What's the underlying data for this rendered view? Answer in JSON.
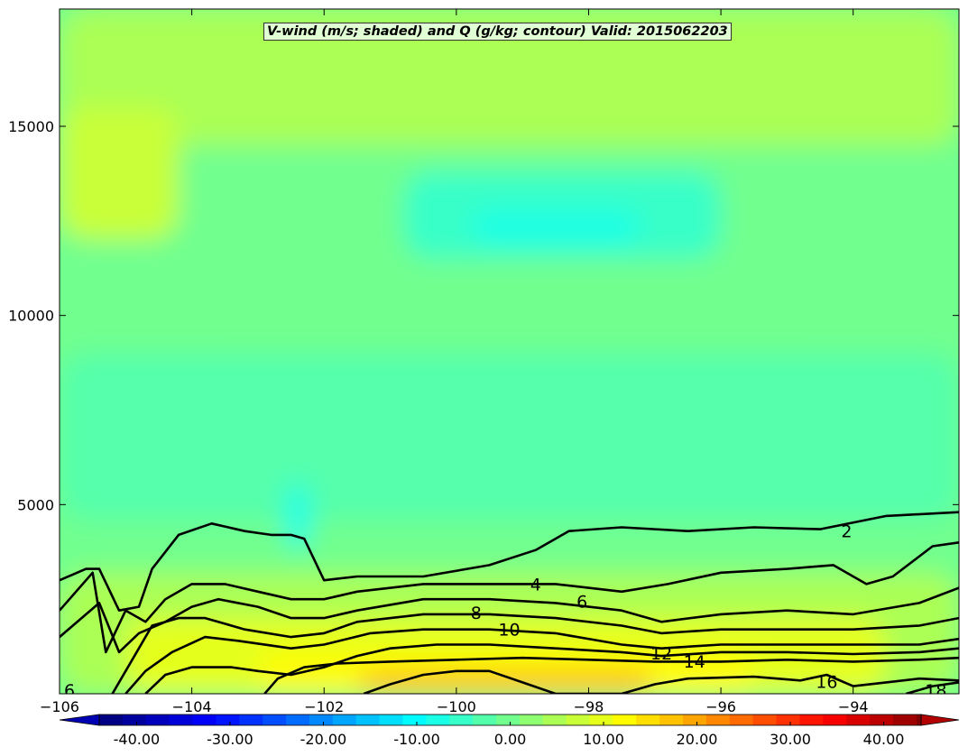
{
  "chart_data": {
    "type": "contour",
    "title": "V-wind (m/s; shaded) and Q (g/kg; contour) Valid: 2015062203",
    "x_ticks": [
      "−106",
      "−104",
      "−102",
      "−100",
      "−98",
      "−96",
      "−94"
    ],
    "x_tick_values": [
      -106,
      -104,
      -102,
      -100,
      -98,
      -96,
      -94
    ],
    "xlim": [
      -106,
      -92.4
    ],
    "y_ticks": [
      "5000",
      "10000",
      "15000"
    ],
    "y_tick_values": [
      5000,
      10000,
      15000
    ],
    "ylim": [
      0,
      18100
    ],
    "colorbar": {
      "ticks": [
        "-40.00",
        "-30.00",
        "-20.00",
        "-10.00",
        "0.00",
        "10.00",
        "20.00",
        "30.00",
        "40.00"
      ],
      "tick_values": [
        -40,
        -30,
        -20,
        -10,
        0,
        10,
        20,
        30,
        40
      ],
      "range": [
        -44,
        44
      ],
      "step": 2.5,
      "extend": "both",
      "colormap": "jet"
    },
    "shaded_field": {
      "name": "V-wind",
      "units": "m/s",
      "regions": [
        {
          "x": [
            -106,
            -92.4
          ],
          "y": [
            0,
            18100
          ],
          "value": -1
        },
        {
          "x": [
            -106,
            -92.4
          ],
          "y": [
            14500,
            18100
          ],
          "value": 4
        },
        {
          "x": [
            -106,
            -104.2
          ],
          "y": [
            12000,
            15500
          ],
          "value": 6
        },
        {
          "x": [
            -100.8,
            -96
          ],
          "y": [
            11500,
            13800
          ],
          "value": -6
        },
        {
          "x": [
            -99.8,
            -97.2
          ],
          "y": [
            11900,
            12800
          ],
          "value": -10
        },
        {
          "x": [
            -106,
            -92.4
          ],
          "y": [
            4600,
            9000
          ],
          "value": -5
        },
        {
          "x": [
            -102.6,
            -102.2
          ],
          "y": [
            3800,
            5600
          ],
          "value": -9
        },
        {
          "x": [
            -106,
            -92.4
          ],
          "y": [
            0,
            3200
          ],
          "value": 3
        },
        {
          "x": [
            -105,
            -93.5
          ],
          "y": [
            0,
            2000
          ],
          "value": 8
        },
        {
          "x": [
            -103,
            -95.5
          ],
          "y": [
            0,
            1100
          ],
          "value": 12
        },
        {
          "x": [
            -101.5,
            -97
          ],
          "y": [
            0,
            650
          ],
          "value": 16
        }
      ]
    },
    "contour_field": {
      "name": "Q",
      "units": "g/kg",
      "levels": [
        2,
        4,
        6,
        8,
        10,
        12,
        14,
        16,
        18
      ],
      "lines": [
        {
          "level": 2,
          "label": "2",
          "label_at": [
            -94.1,
            4300
          ],
          "x": [
            -106,
            -105.6,
            -105.4,
            -105.1,
            -104.8,
            -104.6,
            -104.2,
            -103.7,
            -103.2,
            -102.8,
            -102.5,
            -102.3,
            -102.0,
            -101.5,
            -100.5,
            -99.5,
            -98.8,
            -98.3,
            -97.5,
            -96.5,
            -95.5,
            -94.5,
            -93.5,
            -92.4
          ],
          "y": [
            3000,
            3300,
            3300,
            2200,
            2300,
            3300,
            4200,
            4500,
            4300,
            4200,
            4200,
            4100,
            3000,
            3100,
            3100,
            3400,
            3800,
            4300,
            4400,
            4300,
            4400,
            4350,
            4700,
            4800
          ]
        },
        {
          "level": 4,
          "label": "4",
          "label_at": [
            -98.8,
            2900
          ],
          "x": [
            -106,
            -105.5,
            -105.3,
            -105.0,
            -104.7,
            -104.4,
            -104.0,
            -103.5,
            -103.0,
            -102.5,
            -102.0,
            -101.5,
            -100.5,
            -99.5,
            -98.5,
            -97.5,
            -96.8,
            -96.0,
            -95.0,
            -94.3,
            -93.8,
            -93.4,
            -92.8,
            -92.4
          ],
          "y": [
            2200,
            3200,
            1100,
            2200,
            1900,
            2500,
            2900,
            2900,
            2700,
            2500,
            2500,
            2700,
            2900,
            2900,
            2900,
            2700,
            2900,
            3200,
            3300,
            3400,
            2900,
            3100,
            3900,
            4000
          ]
        },
        {
          "level": 6,
          "label": "6",
          "label_at": [
            -98.1,
            2450
          ],
          "x": [
            -106,
            -105.4,
            -105.1,
            -104.8,
            -104.4,
            -104.0,
            -103.6,
            -103.0,
            -102.5,
            -102.0,
            -101.5,
            -100.5,
            -99.5,
            -98.5,
            -97.5,
            -96.9,
            -96.0,
            -95.0,
            -94.0,
            -93.0,
            -92.4
          ],
          "y": [
            1500,
            2400,
            1100,
            1600,
            1900,
            2300,
            2500,
            2300,
            2000,
            2000,
            2200,
            2500,
            2500,
            2400,
            2200,
            1900,
            2100,
            2200,
            2100,
            2400,
            2800
          ]
        },
        {
          "level": 8,
          "label": "8",
          "label_at": [
            -99.7,
            2150
          ],
          "x": [
            -105.2,
            -104.9,
            -104.6,
            -104.2,
            -103.8,
            -103.2,
            -102.5,
            -102.0,
            -101.5,
            -100.5,
            -99.5,
            -98.5,
            -97.5,
            -96.9,
            -96.0,
            -95.0,
            -94.0,
            -93.0,
            -92.4
          ],
          "y": [
            0,
            900,
            1800,
            2000,
            2000,
            1700,
            1500,
            1600,
            1900,
            2100,
            2100,
            2000,
            1800,
            1600,
            1700,
            1700,
            1700,
            1800,
            2000
          ]
        },
        {
          "level": 10,
          "label": "10",
          "label_at": [
            -99.2,
            1700
          ],
          "x": [
            -105.0,
            -104.7,
            -104.3,
            -103.8,
            -103.3,
            -102.5,
            -102.0,
            -101.3,
            -100.5,
            -99.5,
            -98.5,
            -97.5,
            -96.9,
            -96.0,
            -95.0,
            -94.0,
            -93.0,
            -92.4
          ],
          "y": [
            0,
            600,
            1100,
            1500,
            1400,
            1200,
            1300,
            1600,
            1700,
            1700,
            1600,
            1300,
            1200,
            1300,
            1300,
            1300,
            1300,
            1450
          ]
        },
        {
          "level": 12,
          "label": "12",
          "label_at": [
            -96.9,
            1070
          ],
          "x": [
            -104.7,
            -104.4,
            -104.0,
            -103.4,
            -103.0,
            -102.5,
            -102.0,
            -101.5,
            -101.0,
            -100.3,
            -99.5,
            -98.5,
            -97.5,
            -96.9,
            -96.0,
            -95.0,
            -94.0,
            -93.0,
            -92.4
          ],
          "y": [
            0,
            500,
            700,
            700,
            600,
            500,
            700,
            1000,
            1200,
            1300,
            1300,
            1200,
            1100,
            1000,
            1100,
            1100,
            1050,
            1100,
            1200
          ]
        },
        {
          "level": 14,
          "label": "14",
          "label_at": [
            -96.4,
            860
          ],
          "x": [
            -102.9,
            -102.7,
            -102.3,
            -101.8,
            -101.0,
            -100.0,
            -99.0,
            -98.0,
            -97.0,
            -96.0,
            -95.0,
            -94.0,
            -93.0,
            -92.4
          ],
          "y": [
            0,
            400,
            700,
            800,
            850,
            900,
            950,
            900,
            850,
            850,
            900,
            850,
            900,
            950
          ]
        },
        {
          "level": 16,
          "label": "16",
          "label_at": [
            -94.4,
            320
          ],
          "x": [
            -101.4,
            -101.0,
            -100.5,
            -100.0,
            -99.5,
            -99.0,
            -98.5,
            -98.0,
            -97.5,
            -97.0,
            -96.5,
            -95.5,
            -94.8,
            -94.4,
            -94.0,
            -93.5,
            -93.0,
            -92.4
          ],
          "y": [
            0,
            250,
            500,
            600,
            600,
            300,
            0,
            0,
            0,
            250,
            400,
            450,
            350,
            500,
            200,
            300,
            400,
            350
          ]
        },
        {
          "level": 18,
          "label": "18",
          "label_at": [
            -92.75,
            100
          ],
          "x": [
            -93.2,
            -92.8,
            -92.4
          ],
          "y": [
            0,
            200,
            300
          ]
        }
      ],
      "extra_labels": [
        {
          "label": "6",
          "at": [
            -105.85,
            100
          ]
        }
      ]
    }
  }
}
